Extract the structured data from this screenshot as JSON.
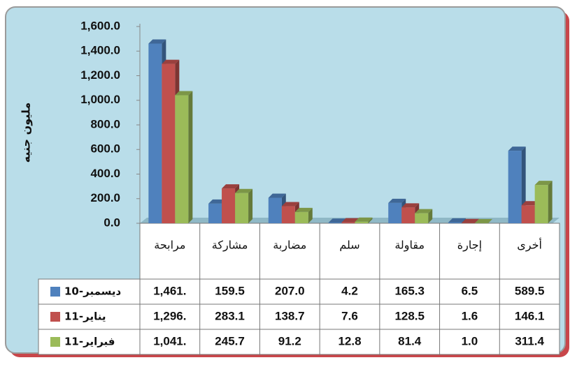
{
  "chart_data": {
    "type": "bar",
    "y_label": "مليون جنيه",
    "categories": [
      "مرابحة",
      "مشاركة",
      "مضاربة",
      "سلم",
      "مقاولة",
      "إجارة",
      "أخرى"
    ],
    "series": [
      {
        "name": "10-ديسمبر",
        "color": "#4f81bd",
        "values": [
          1461,
          159.5,
          207.0,
          4.2,
          165.3,
          6.5,
          589.5
        ],
        "value_labels": [
          "1,461.",
          "159.5",
          "207.0",
          "4.2",
          "165.3",
          "6.5",
          "589.5"
        ]
      },
      {
        "name": "11-يناير",
        "color": "#c0504d",
        "values": [
          1296,
          283.1,
          138.7,
          7.6,
          128.5,
          1.6,
          146.1
        ],
        "value_labels": [
          "1,296.",
          "283.1",
          "138.7",
          "7.6",
          "128.5",
          "1.6",
          "146.1"
        ]
      },
      {
        "name": "11-فبراير",
        "color": "#9bbb59",
        "values": [
          1041,
          245.7,
          91.2,
          12.8,
          81.4,
          1.0,
          311.4
        ],
        "value_labels": [
          "1,041.",
          "245.7",
          "91.2",
          "12.8",
          "81.4",
          "1.0",
          "311.4"
        ]
      }
    ],
    "ylim": [
      0,
      1600
    ],
    "yticks": [
      {
        "value": 0,
        "label": "0.0"
      },
      {
        "value": 200,
        "label": "200.0"
      },
      {
        "value": 400,
        "label": "400.0"
      },
      {
        "value": 600,
        "label": "600.0"
      },
      {
        "value": 800,
        "label": "800.0"
      },
      {
        "value": 1000,
        "label": "1,000.0"
      },
      {
        "value": 1200,
        "label": "1,200.0"
      },
      {
        "value": 1400,
        "label": "1,400.0"
      },
      {
        "value": 1600,
        "label": "1,600.0"
      }
    ],
    "grid": false
  }
}
